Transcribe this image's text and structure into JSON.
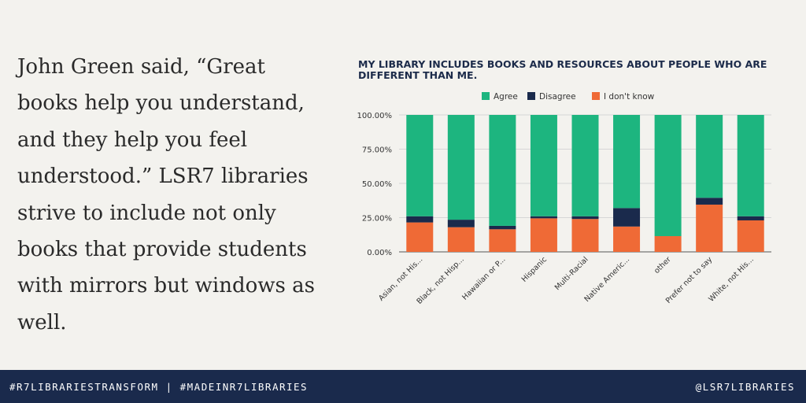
{
  "quote_text": "John Green said, “Great books help you understand, and they help you feel understood.”  LSR7 libraries strive to include not only books that provide students with mirrors but windows as well.",
  "footer": {
    "hashtags": "#R7LIBRARIESTRANSFORM | #MADEINR7LIBRARIES",
    "handle": "@LSR7LIBRARIES"
  },
  "colors": {
    "agree": "#1db57f",
    "disagree": "#1a2a4c",
    "dont_know": "#ef6a36",
    "footer_bg": "#1a2a4c"
  },
  "chart_data": {
    "type": "bar",
    "stacked": true,
    "title": "MY LIBRARY INCLUDES BOOKS AND RESOURCES ABOUT PEOPLE WHO ARE DIFFERENT THAN ME.",
    "categories": [
      "Asian, not His...",
      "Black, not Hisp...",
      "Hawaiian or P...",
      "Hispanic",
      "Multi-Racial",
      "Native Americ...",
      "other",
      "Prefer not to say",
      "White, not His..."
    ],
    "series": [
      {
        "name": "I don't know",
        "color": "#ef6a36",
        "values": [
          21.5,
          18,
          16.5,
          24.5,
          24,
          18.5,
          11.5,
          34.5,
          23
        ]
      },
      {
        "name": "Disagree",
        "color": "#1a2a4c",
        "values": [
          4.5,
          5.5,
          2.5,
          1.5,
          2,
          13.5,
          0,
          5,
          3
        ]
      },
      {
        "name": "Agree",
        "color": "#1db57f",
        "values": [
          74,
          76.5,
          81,
          74,
          74,
          68,
          88.5,
          60.5,
          74
        ]
      }
    ],
    "legend_order": [
      "Agree",
      "Disagree",
      "I don't know"
    ],
    "legend_position": "top",
    "yticks": [
      "0.00%",
      "25.00%",
      "50.00%",
      "75.00%",
      "100.00%"
    ],
    "ylim": [
      0,
      100
    ],
    "grid": true
  }
}
